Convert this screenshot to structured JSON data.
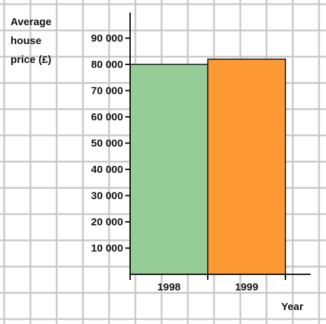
{
  "chart_data": {
    "type": "bar",
    "categories": [
      "1998",
      "1999"
    ],
    "values": [
      80000,
      82000
    ],
    "colors": [
      "#96cc96",
      "#ff9933"
    ],
    "ylabel_lines": [
      "Average",
      "house",
      "price (£)"
    ],
    "xlabel": "Year",
    "ylim": [
      0,
      100000
    ],
    "yticks": [
      10000,
      20000,
      30000,
      40000,
      50000,
      60000,
      70000,
      80000,
      90000
    ],
    "ytick_labels": [
      "10 000",
      "20 000",
      "30 000",
      "40 000",
      "50 000",
      "60 000",
      "70 000",
      "80 000",
      "90 000"
    ],
    "grid": true,
    "grid_color": "#c8c8c8"
  }
}
